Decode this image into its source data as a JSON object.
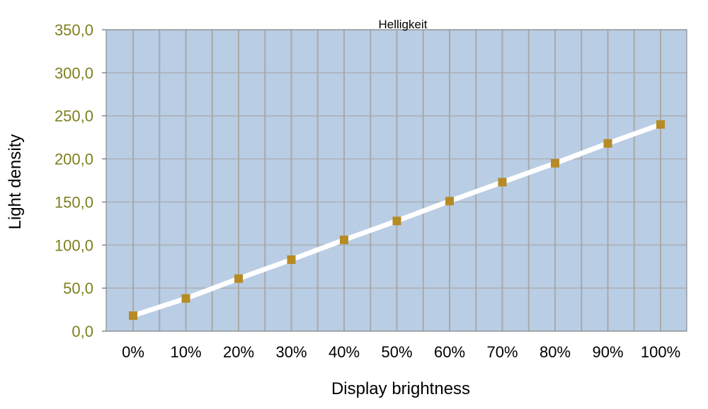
{
  "chart_data": {
    "type": "line",
    "title": "Helligkeit",
    "xlabel": "Display brightness",
    "ylabel": "Light density",
    "categories": [
      "0%",
      "10%",
      "20%",
      "30%",
      "40%",
      "50%",
      "60%",
      "70%",
      "80%",
      "90%",
      "100%"
    ],
    "series": [
      {
        "values": [
          18,
          38,
          61,
          83,
          106,
          128,
          151,
          173,
          195,
          218,
          240
        ]
      }
    ],
    "ylim": [
      0,
      350
    ],
    "yticks": [
      "0,0",
      "50,0",
      "100,0",
      "150,0",
      "200,0",
      "250,0",
      "300,0",
      "350,0"
    ],
    "grid": true,
    "legend": "none",
    "colors": {
      "plot_background": "#b9cde4",
      "grid": "#a9a9a9",
      "line": "#ffffff",
      "marker": "#b68a24",
      "ytick_text": "#7f7f1f"
    }
  }
}
